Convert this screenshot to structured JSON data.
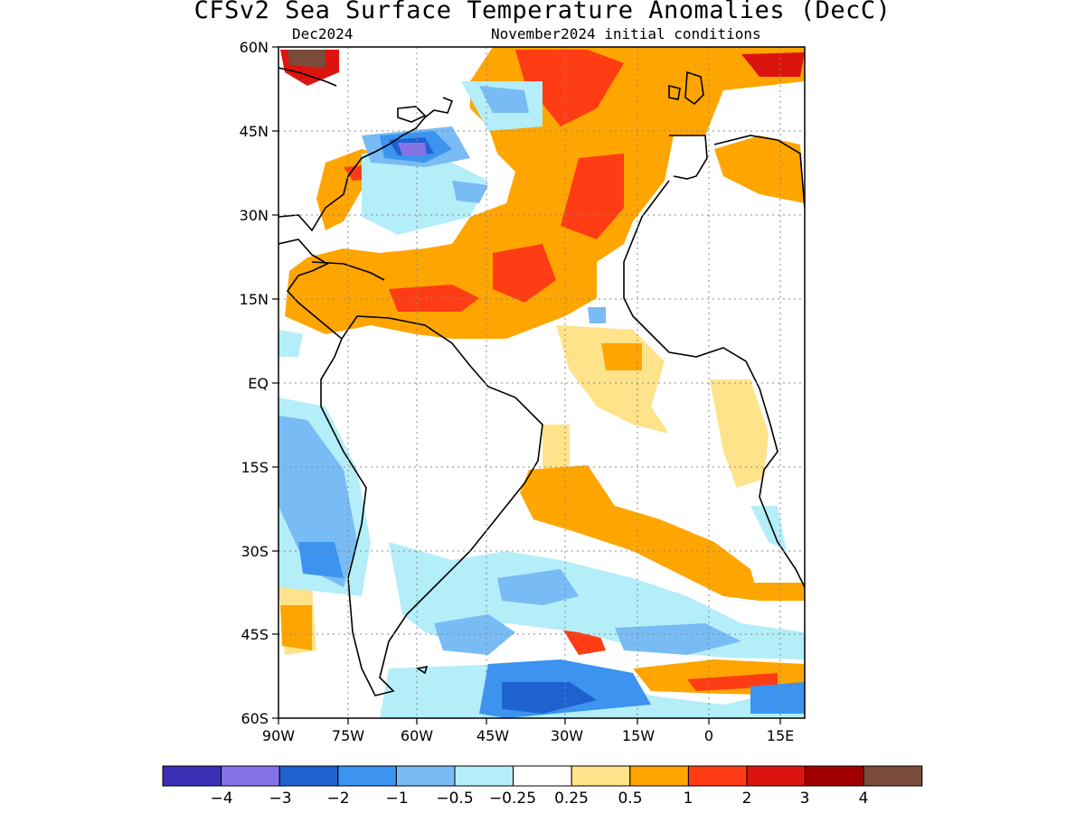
{
  "title": "CFSv2 Sea Surface Temperature Anomalies (DecC)",
  "subtitle_left": "Dec2024",
  "subtitle_right": "November2024 initial conditions",
  "map": {
    "lon_range": [
      -90,
      20
    ],
    "lat_range": [
      -60,
      60
    ],
    "lat_labels": [
      "60N",
      "45N",
      "30N",
      "15N",
      "EQ",
      "15S",
      "30S",
      "45S",
      "60S"
    ],
    "lon_labels": [
      "90W",
      "75W",
      "60W",
      "45W",
      "30W",
      "15W",
      "0",
      "15E"
    ],
    "grid": "dotted"
  },
  "colorbar": {
    "colors": [
      "#3a2fb5",
      "#8474e8",
      "#1e62d0",
      "#3c93f0",
      "#78bbf5",
      "#b4eef8",
      "#ffffff",
      "#ffe38a",
      "#ffa500",
      "#ff3c14",
      "#dc140f",
      "#a00000",
      "#7a4b3a"
    ],
    "labels": [
      "−4",
      "−3",
      "−2",
      "−1",
      "−0.5",
      "−0.25",
      "0.25",
      "0.5",
      "1",
      "2",
      "3",
      "4"
    ]
  }
}
